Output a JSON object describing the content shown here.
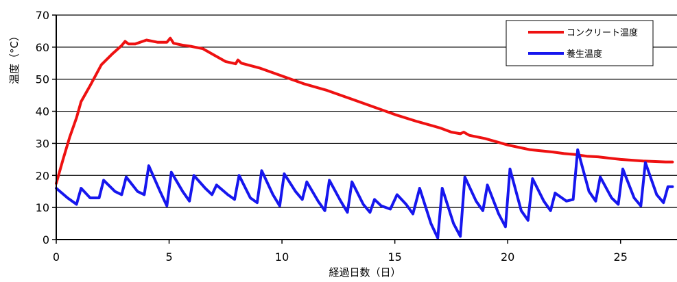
{
  "chart_data": {
    "type": "line",
    "xlabel": "経過日数（日）",
    "ylabel": "温度（°C）",
    "xlim": [
      0,
      27.5
    ],
    "ylim": [
      0,
      70
    ],
    "xticks": [
      0,
      5,
      10,
      15,
      20,
      25
    ],
    "yticks": [
      0,
      10,
      20,
      30,
      40,
      50,
      60,
      70
    ],
    "grid": "horizontal",
    "legend_position": "top-right",
    "series": [
      {
        "name": "コンクリート温度",
        "color": "#ee1111",
        "x": [
          0,
          0.3,
          0.6,
          0.9,
          1.1,
          1.5,
          2.0,
          2.5,
          2.9,
          3.05,
          3.2,
          3.5,
          4.0,
          4.5,
          4.9,
          5.05,
          5.2,
          5.6,
          6.0,
          6.5,
          7.0,
          7.5,
          7.95,
          8.05,
          8.2,
          9.0,
          10.0,
          11.0,
          12.0,
          13.0,
          14.0,
          15.0,
          16.0,
          17.0,
          17.5,
          17.9,
          18.05,
          18.3,
          19.0,
          20.0,
          21.0,
          22.0,
          22.5,
          23.0,
          23.5,
          24.0,
          25.0,
          26.0,
          27.0,
          27.3
        ],
        "values": [
          17.5,
          25,
          32,
          38,
          43,
          48,
          54.5,
          58,
          60.5,
          61.8,
          61.0,
          61.0,
          62.2,
          61.5,
          61.5,
          62.8,
          61.2,
          60.6,
          60.2,
          59.5,
          57.5,
          55.5,
          54.8,
          56.0,
          55.0,
          53.5,
          51.0,
          48.5,
          46.5,
          44.0,
          41.5,
          39.0,
          36.8,
          34.8,
          33.5,
          33.0,
          33.5,
          32.5,
          31.5,
          29.5,
          28.0,
          27.3,
          26.8,
          26.5,
          26.0,
          25.8,
          25.0,
          24.5,
          24.2,
          24.2
        ]
      },
      {
        "name": "養生温度",
        "color": "#1616ee",
        "x": [
          0,
          0.5,
          0.9,
          1.1,
          1.5,
          1.9,
          2.1,
          2.6,
          2.9,
          3.1,
          3.6,
          3.9,
          4.1,
          4.6,
          4.9,
          5.1,
          5.6,
          5.9,
          6.1,
          6.6,
          6.9,
          7.1,
          7.6,
          7.9,
          8.1,
          8.6,
          8.9,
          9.1,
          9.6,
          9.9,
          10.1,
          10.6,
          10.9,
          11.1,
          11.6,
          11.9,
          12.1,
          12.6,
          12.9,
          13.1,
          13.6,
          13.9,
          14.1,
          14.4,
          14.8,
          15.1,
          15.5,
          15.8,
          16.1,
          16.6,
          16.9,
          17.1,
          17.6,
          17.9,
          18.1,
          18.6,
          18.9,
          19.1,
          19.6,
          19.9,
          20.1,
          20.6,
          20.9,
          21.1,
          21.6,
          21.9,
          22.1,
          22.6,
          22.9,
          23.1,
          23.6,
          23.9,
          24.1,
          24.6,
          24.9,
          25.1,
          25.6,
          25.9,
          26.1,
          26.6,
          26.9,
          27.1,
          27.3
        ],
        "values": [
          16,
          13,
          11,
          16,
          13,
          13,
          18.5,
          15,
          14,
          19.5,
          15,
          14,
          23,
          15,
          10.5,
          21,
          15,
          12,
          20,
          16,
          14,
          17,
          14,
          12.5,
          20,
          13,
          11.5,
          21.5,
          14,
          10.5,
          20.5,
          15,
          12.5,
          18,
          12,
          9,
          18.5,
          12,
          8.5,
          18,
          11,
          8.5,
          12.5,
          10.5,
          9.5,
          14,
          11,
          8,
          16,
          5,
          0.5,
          16,
          5,
          1,
          19.5,
          12,
          9,
          17,
          8,
          4,
          22,
          9,
          6,
          19,
          12,
          9,
          14.5,
          12,
          12.5,
          28,
          15,
          12,
          19.5,
          13,
          11,
          22,
          13,
          10.5,
          24,
          14,
          11.5,
          16.5,
          16.5
        ]
      }
    ]
  }
}
